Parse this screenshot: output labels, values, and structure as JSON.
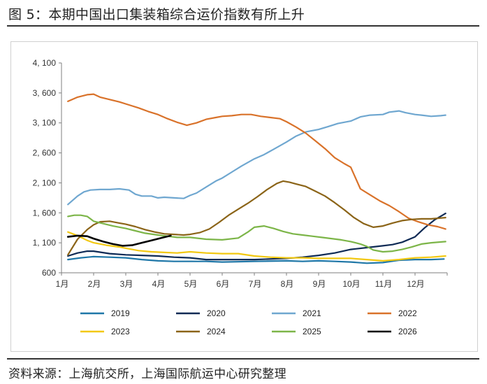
{
  "figure": {
    "title": "图 5：本期中国出口集装箱综合运价指数有所上升",
    "source": "资料来源：上海航交所，上海国际航运中心研究整理"
  },
  "chart_data": {
    "type": "line",
    "title": "",
    "xlabel": "",
    "ylabel": "",
    "ylim": [
      600,
      4100
    ],
    "yticks": [
      600,
      1100,
      1600,
      2100,
      2600,
      3100,
      3600,
      4100
    ],
    "ytick_labels": [
      "600",
      "1, 100",
      "1, 600",
      "2, 100",
      "2, 600",
      "3, 100",
      "3, 600",
      "4, 100"
    ],
    "xlim": [
      1,
      13
    ],
    "xticks": [
      1,
      2,
      3,
      4,
      5,
      6,
      7,
      8,
      9,
      10,
      11,
      12
    ],
    "xtick_labels": [
      "1月",
      "2月",
      "3月",
      "4月",
      "5月",
      "6月",
      "7月",
      "8月",
      "9月",
      "10月",
      "11月",
      "12月"
    ],
    "grid": false,
    "legend_position": "bottom",
    "series": [
      {
        "name": "2019",
        "color": "#1F77A8",
        "width": 2.2,
        "x": [
          1.2,
          1.6,
          2.0,
          2.5,
          3.0,
          3.5,
          4.0,
          4.5,
          5.0,
          5.5,
          6.0,
          7.0,
          8.0,
          8.5,
          9.0,
          9.5,
          10.0,
          10.5,
          11.0,
          11.5,
          12.0,
          12.5,
          12.9
        ],
        "y": [
          820,
          850,
          870,
          860,
          850,
          820,
          800,
          790,
          790,
          790,
          780,
          790,
          800,
          790,
          800,
          790,
          780,
          760,
          770,
          810,
          820,
          820,
          830
        ]
      },
      {
        "name": "2020",
        "color": "#0E2A55",
        "width": 2.2,
        "x": [
          1.2,
          1.5,
          1.8,
          2.0,
          2.5,
          3.0,
          3.5,
          4.0,
          4.5,
          5.0,
          5.5,
          6.0,
          7.0,
          8.0,
          8.5,
          9.0,
          9.5,
          10.0,
          10.5,
          11.0,
          11.3,
          11.6,
          12.0,
          12.3,
          12.6,
          12.95
        ],
        "y": [
          880,
          930,
          960,
          960,
          920,
          900,
          890,
          880,
          860,
          850,
          820,
          820,
          820,
          840,
          860,
          890,
          930,
          990,
          1020,
          1050,
          1070,
          1110,
          1200,
          1350,
          1480,
          1590
        ]
      },
      {
        "name": "2021",
        "color": "#6FA7D0",
        "width": 2.2,
        "x": [
          1.2,
          1.5,
          1.7,
          1.9,
          2.2,
          2.5,
          2.8,
          3.1,
          3.3,
          3.5,
          3.8,
          4.0,
          4.2,
          4.5,
          4.8,
          5.0,
          5.2,
          5.5,
          5.8,
          6.0,
          6.3,
          6.6,
          7.0,
          7.3,
          7.6,
          8.0,
          8.3,
          8.6,
          9.0,
          9.3,
          9.6,
          10.0,
          10.3,
          10.6,
          11.0,
          11.2,
          11.5,
          11.7,
          12.0,
          12.2,
          12.5,
          12.8,
          12.95
        ],
        "y": [
          1740,
          1880,
          1950,
          1980,
          1990,
          1990,
          2000,
          1980,
          1910,
          1880,
          1880,
          1850,
          1860,
          1850,
          1840,
          1890,
          1930,
          2030,
          2130,
          2180,
          2280,
          2380,
          2500,
          2570,
          2660,
          2780,
          2880,
          2950,
          2990,
          3040,
          3090,
          3130,
          3200,
          3230,
          3240,
          3280,
          3300,
          3270,
          3240,
          3230,
          3210,
          3220,
          3230
        ]
      },
      {
        "name": "2022",
        "color": "#D9722A",
        "width": 2.2,
        "x": [
          1.2,
          1.5,
          1.8,
          2.0,
          2.2,
          2.5,
          2.8,
          3.1,
          3.4,
          3.7,
          4.0,
          4.3,
          4.6,
          4.9,
          5.2,
          5.5,
          5.8,
          6.0,
          6.3,
          6.6,
          6.9,
          7.2,
          7.5,
          7.8,
          8.0,
          8.3,
          8.6,
          8.9,
          9.2,
          9.5,
          9.8,
          10.0,
          10.3,
          10.6,
          10.9,
          11.2,
          11.5,
          11.8,
          12.1,
          12.4,
          12.7,
          12.95
        ],
        "y": [
          3460,
          3530,
          3570,
          3580,
          3530,
          3490,
          3450,
          3400,
          3350,
          3290,
          3240,
          3170,
          3110,
          3060,
          3100,
          3160,
          3190,
          3210,
          3220,
          3240,
          3240,
          3210,
          3190,
          3170,
          3120,
          3030,
          2930,
          2800,
          2670,
          2520,
          2420,
          2360,
          2000,
          1900,
          1800,
          1720,
          1620,
          1510,
          1450,
          1400,
          1370,
          1330
        ]
      },
      {
        "name": "2023",
        "color": "#F2C811",
        "width": 2.2,
        "x": [
          1.2,
          1.5,
          1.8,
          2.0,
          2.4,
          2.8,
          3.0,
          3.4,
          3.8,
          4.2,
          4.6,
          5.0,
          5.5,
          6.0,
          6.5,
          7.0,
          7.5,
          8.0,
          8.5,
          9.0,
          9.5,
          10.0,
          10.5,
          11.0,
          11.5,
          12.0,
          12.5,
          12.95
        ],
        "y": [
          1280,
          1220,
          1140,
          1100,
          1060,
          1030,
          1010,
          970,
          950,
          940,
          930,
          950,
          930,
          920,
          920,
          880,
          860,
          850,
          850,
          840,
          840,
          840,
          820,
          800,
          820,
          850,
          860,
          880
        ]
      },
      {
        "name": "2024",
        "color": "#8B6418",
        "width": 2.2,
        "x": [
          1.2,
          1.5,
          1.8,
          2.0,
          2.2,
          2.5,
          2.8,
          3.0,
          3.3,
          3.6,
          3.9,
          4.2,
          4.5,
          4.8,
          5.0,
          5.3,
          5.6,
          5.9,
          6.2,
          6.5,
          6.8,
          7.1,
          7.4,
          7.7,
          7.9,
          8.1,
          8.3,
          8.6,
          8.9,
          9.2,
          9.5,
          9.8,
          10.1,
          10.4,
          10.7,
          11.0,
          11.3,
          11.6,
          11.9,
          12.2,
          12.5,
          12.95
        ],
        "y": [
          900,
          1160,
          1320,
          1400,
          1450,
          1460,
          1430,
          1410,
          1370,
          1320,
          1280,
          1250,
          1240,
          1230,
          1240,
          1270,
          1330,
          1440,
          1560,
          1660,
          1760,
          1870,
          1990,
          2090,
          2130,
          2110,
          2080,
          2040,
          1960,
          1880,
          1770,
          1650,
          1520,
          1420,
          1360,
          1380,
          1430,
          1470,
          1490,
          1500,
          1500,
          1520
        ]
      },
      {
        "name": "2025",
        "color": "#7CB548",
        "width": 2.2,
        "x": [
          1.2,
          1.4,
          1.6,
          1.8,
          2.0,
          2.3,
          2.6,
          3.0,
          3.3,
          3.6,
          4.0,
          4.3,
          4.6,
          5.0,
          5.5,
          6.0,
          6.5,
          6.8,
          7.0,
          7.3,
          7.6,
          7.9,
          8.2,
          8.5,
          8.8,
          9.1,
          9.4,
          9.7,
          10.0,
          10.3,
          10.5,
          10.7,
          11.0,
          11.3,
          11.6,
          11.9,
          12.2,
          12.5,
          12.95
        ],
        "y": [
          1540,
          1560,
          1560,
          1540,
          1460,
          1420,
          1380,
          1340,
          1300,
          1260,
          1230,
          1210,
          1190,
          1190,
          1160,
          1150,
          1180,
          1280,
          1360,
          1380,
          1340,
          1290,
          1250,
          1230,
          1210,
          1190,
          1170,
          1150,
          1120,
          1080,
          1040,
          980,
          950,
          960,
          990,
          1030,
          1080,
          1100,
          1120
        ]
      },
      {
        "name": "2026",
        "color": "#000000",
        "width": 2.6,
        "x": [
          1.2,
          1.5,
          1.8,
          2.0,
          2.3,
          2.6,
          2.9,
          3.2,
          3.5,
          3.8,
          4.1,
          4.4
        ],
        "y": [
          1200,
          1220,
          1210,
          1170,
          1120,
          1080,
          1050,
          1060,
          1100,
          1140,
          1180,
          1220
        ]
      }
    ]
  }
}
